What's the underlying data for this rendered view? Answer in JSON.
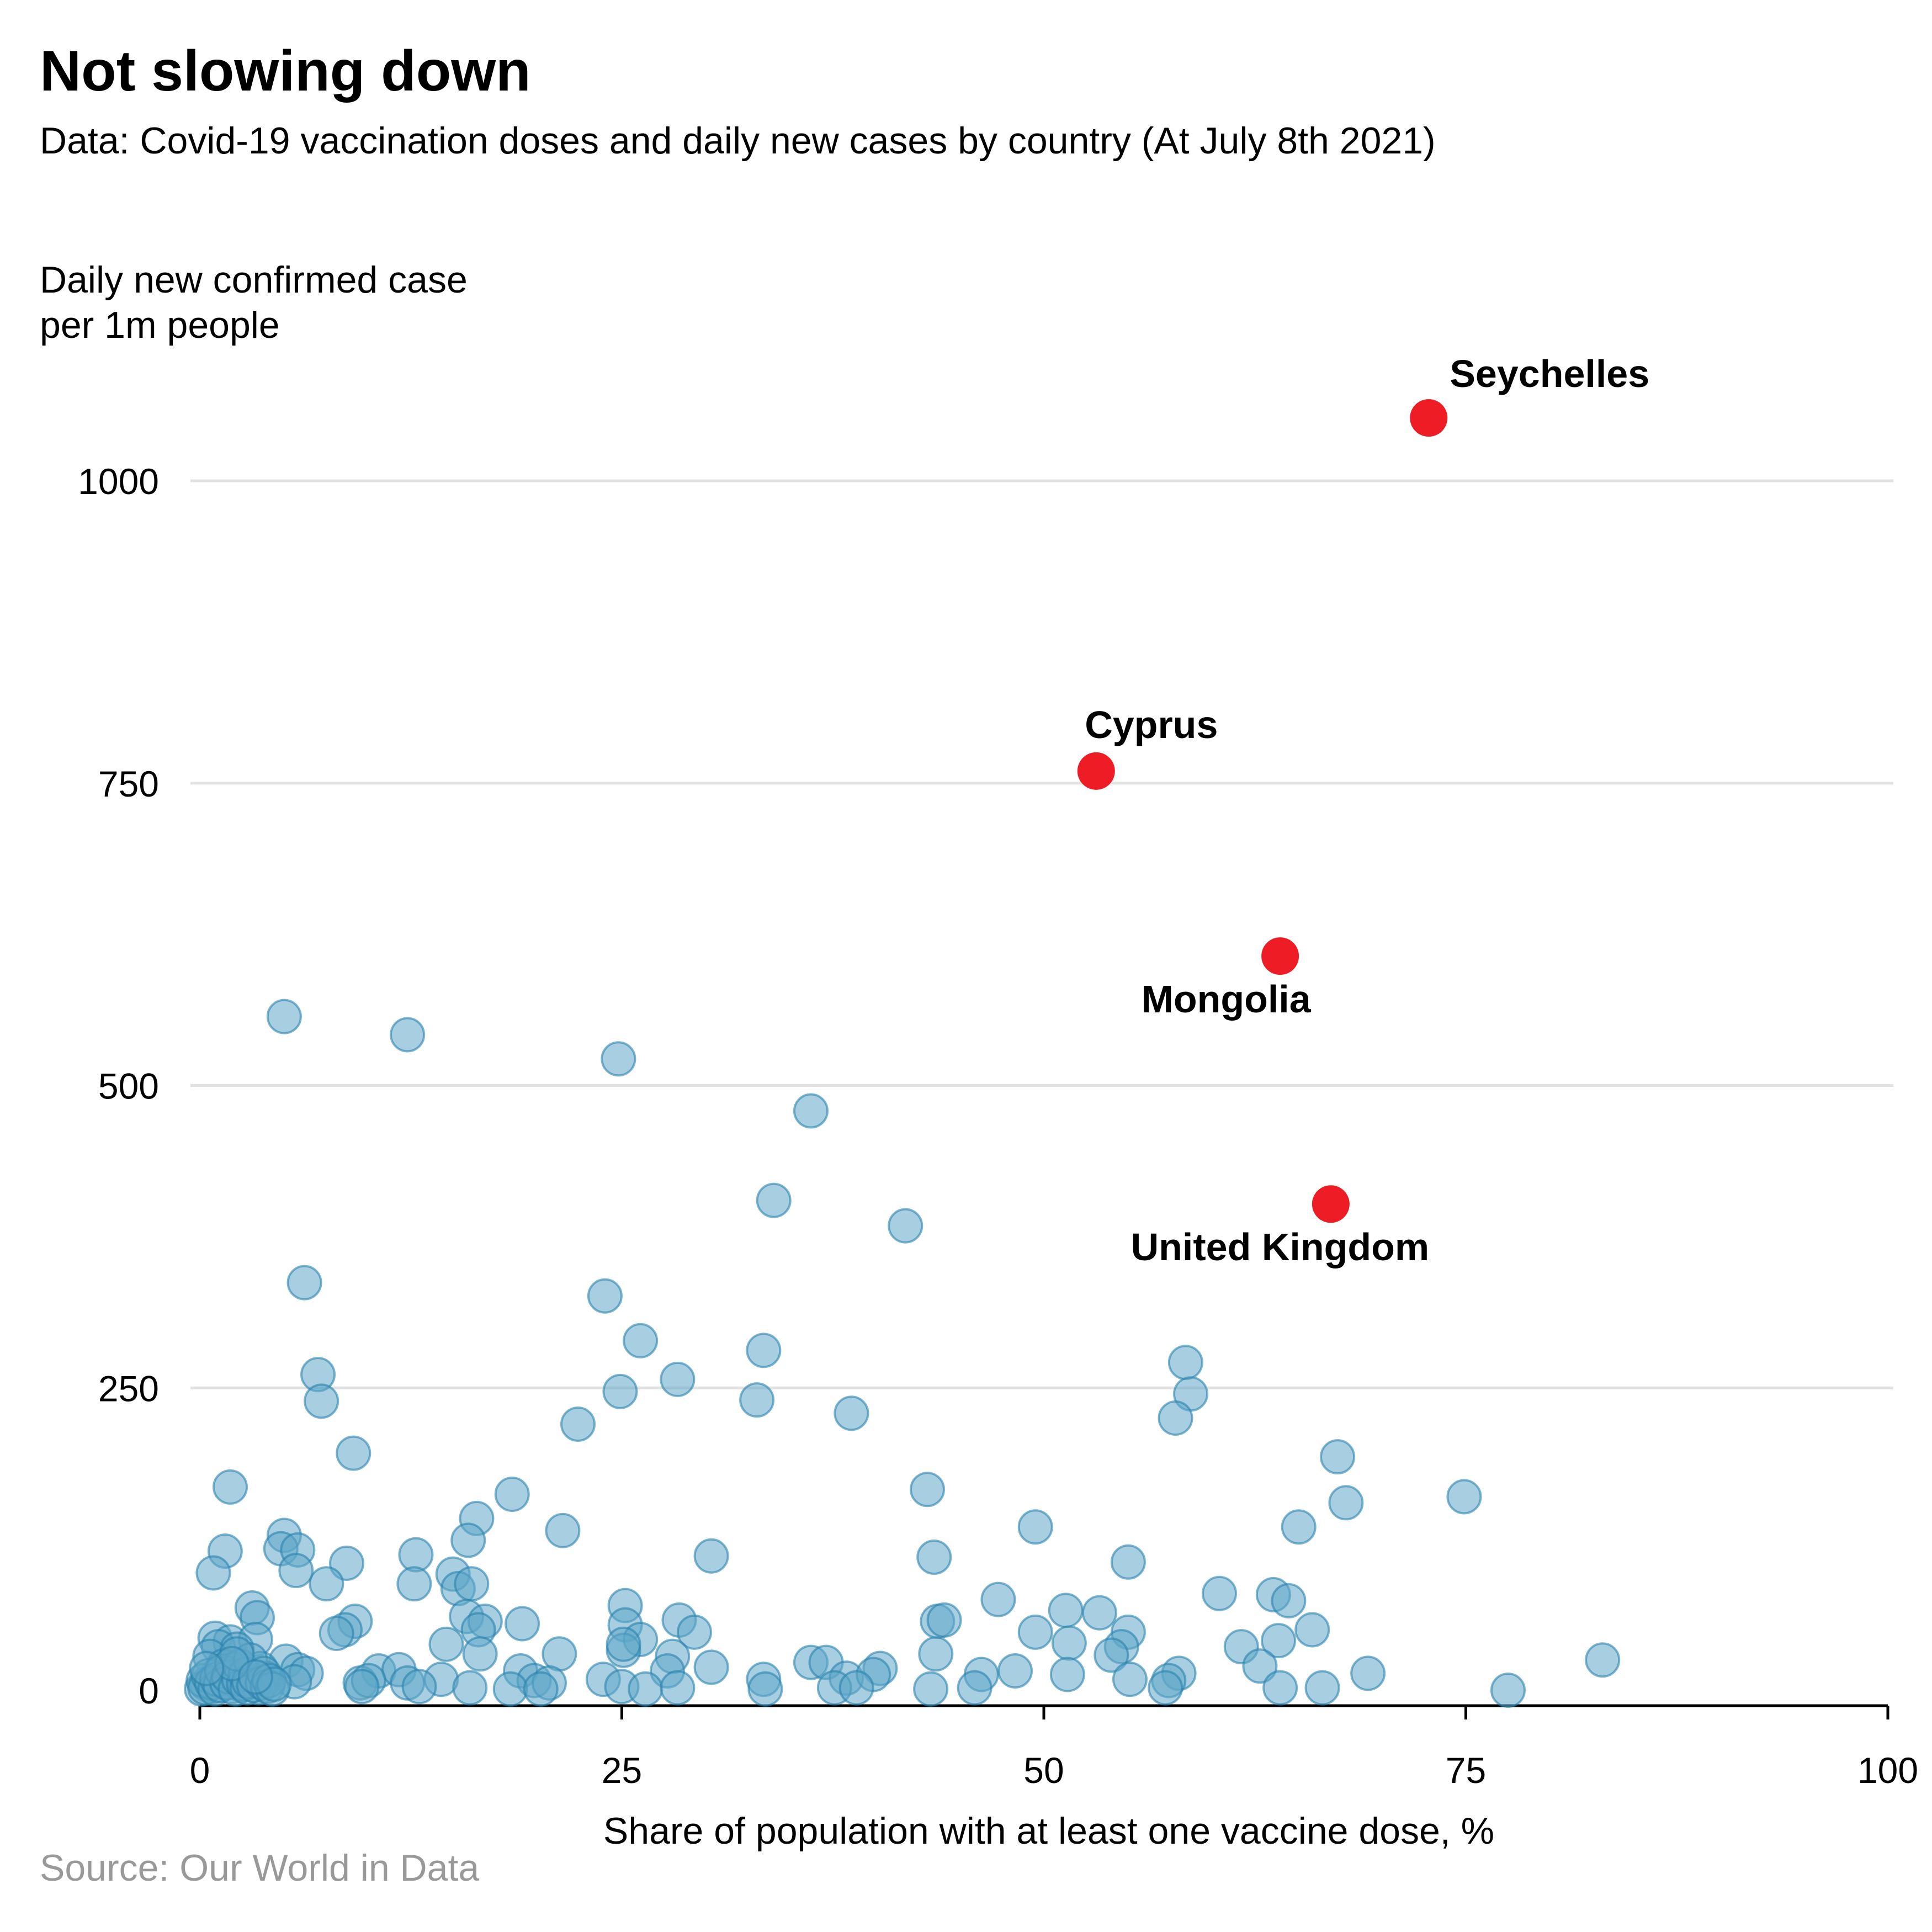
{
  "title": "Not slowing down",
  "subtitle": "Data: Covid-19 vaccination doses and daily new cases by country (At July 8th 2021)",
  "ylabel_line1": "Daily new confirmed case",
  "ylabel_line2": "per 1m people",
  "source": "Source: Our World in Data",
  "chart_data": {
    "type": "scatter",
    "title": "Not slowing down",
    "subtitle": "Data: Covid-19 vaccination doses and daily new cases by country (At July 8th 2021)",
    "xlabel": "Share of population with at least one vaccine dose, %",
    "ylabel": "Daily new confirmed case per 1m people",
    "xlim": [
      0,
      100
    ],
    "ylim": [
      0,
      1060
    ],
    "xticks": [
      0,
      25,
      50,
      75,
      100
    ],
    "yticks": [
      0,
      250,
      500,
      750,
      1000
    ],
    "grid": "horizontal",
    "colors": {
      "base": "#5ea7c8",
      "base_stroke": "#2a82ad",
      "highlight": "#ee1c25"
    },
    "highlighted": [
      {
        "name": "Seychelles",
        "x": 72.8,
        "y": 1052,
        "label_position": "above-right"
      },
      {
        "name": "Cyprus",
        "x": 53.1,
        "y": 760,
        "label_position": "above"
      },
      {
        "name": "Mongolia",
        "x": 64.0,
        "y": 607,
        "label_position": "below-left"
      },
      {
        "name": "United Kingdom",
        "x": 67.0,
        "y": 402,
        "label_position": "below"
      }
    ],
    "points": [
      [
        5.0,
        557
      ],
      [
        12.3,
        542
      ],
      [
        24.8,
        522
      ],
      [
        36.2,
        479
      ],
      [
        34.0,
        405
      ],
      [
        41.8,
        384
      ],
      [
        6.2,
        337
      ],
      [
        24.0,
        326
      ],
      [
        26.1,
        289
      ],
      [
        33.4,
        281
      ],
      [
        7.0,
        261
      ],
      [
        28.3,
        257
      ],
      [
        58.4,
        271
      ],
      [
        58.7,
        245
      ],
      [
        7.2,
        239
      ],
      [
        24.9,
        247
      ],
      [
        33.0,
        240
      ],
      [
        38.6,
        229
      ],
      [
        57.8,
        225
      ],
      [
        22.4,
        220
      ],
      [
        9.1,
        196
      ],
      [
        67.4,
        193
      ],
      [
        1.8,
        168
      ],
      [
        43.1,
        166
      ],
      [
        18.5,
        162
      ],
      [
        67.9,
        155
      ],
      [
        74.9,
        160
      ],
      [
        16.4,
        142
      ],
      [
        49.5,
        135
      ],
      [
        65.1,
        135
      ],
      [
        21.5,
        132
      ],
      [
        5.0,
        128
      ],
      [
        4.8,
        117
      ],
      [
        1.5,
        115
      ],
      [
        5.8,
        116
      ],
      [
        12.8,
        112
      ],
      [
        30.3,
        111
      ],
      [
        43.5,
        110
      ],
      [
        15.9,
        124
      ],
      [
        55.0,
        106
      ],
      [
        8.7,
        105
      ],
      [
        0.8,
        97
      ],
      [
        5.7,
        99
      ],
      [
        15.0,
        96
      ],
      [
        12.7,
        88
      ],
      [
        7.5,
        88
      ],
      [
        15.3,
        84
      ],
      [
        16.1,
        88
      ],
      [
        60.4,
        80
      ],
      [
        63.6,
        79
      ],
      [
        47.3,
        75
      ],
      [
        64.5,
        74
      ],
      [
        3.1,
        68
      ],
      [
        3.4,
        60
      ],
      [
        15.8,
        61
      ],
      [
        25.2,
        70
      ],
      [
        28.4,
        58
      ],
      [
        43.7,
        57
      ],
      [
        44.1,
        58
      ],
      [
        51.3,
        66
      ],
      [
        53.3,
        64
      ],
      [
        9.2,
        57
      ],
      [
        16.9,
        57
      ],
      [
        19.1,
        55
      ],
      [
        25.2,
        54
      ],
      [
        65.9,
        50
      ],
      [
        8.6,
        50
      ],
      [
        16.5,
        50
      ],
      [
        29.3,
        48
      ],
      [
        49.5,
        48
      ],
      [
        55.0,
        48
      ],
      [
        8.1,
        47
      ],
      [
        0.9,
        43
      ],
      [
        1.8,
        40
      ],
      [
        3.3,
        42
      ],
      [
        14.6,
        38
      ],
      [
        26.1,
        42
      ],
      [
        51.5,
        39
      ],
      [
        54.6,
        36
      ],
      [
        61.7,
        36
      ],
      [
        63.9,
        41
      ],
      [
        1.1,
        36
      ],
      [
        2.2,
        34
      ],
      [
        16.6,
        30
      ],
      [
        21.3,
        30
      ],
      [
        25.1,
        33
      ],
      [
        25.1,
        38
      ],
      [
        28.0,
        28
      ],
      [
        43.6,
        30
      ],
      [
        54.0,
        29
      ],
      [
        83.1,
        25
      ],
      [
        0.6,
        28
      ],
      [
        1.4,
        20
      ],
      [
        5.1,
        24
      ],
      [
        36.2,
        23
      ],
      [
        37.1,
        23
      ],
      [
        62.8,
        20
      ],
      [
        1.1,
        14
      ],
      [
        2.0,
        17
      ],
      [
        3.6,
        18
      ],
      [
        5.8,
        17
      ],
      [
        6.3,
        14
      ],
      [
        10.6,
        16
      ],
      [
        11.8,
        17
      ],
      [
        19.0,
        16
      ],
      [
        27.7,
        16
      ],
      [
        30.3,
        19
      ],
      [
        40.3,
        18
      ],
      [
        46.3,
        13
      ],
      [
        48.3,
        16
      ],
      [
        51.4,
        13
      ],
      [
        58.0,
        14
      ],
      [
        69.2,
        14
      ],
      [
        1.5,
        10
      ],
      [
        3.9,
        10
      ],
      [
        5.6,
        7
      ],
      [
        9.5,
        6
      ],
      [
        10.0,
        8
      ],
      [
        12.3,
        6
      ],
      [
        14.3,
        9
      ],
      [
        19.8,
        8
      ],
      [
        20.7,
        6
      ],
      [
        23.9,
        9
      ],
      [
        33.4,
        9
      ],
      [
        38.3,
        10
      ],
      [
        39.9,
        13
      ],
      [
        55.1,
        9
      ],
      [
        57.4,
        8
      ],
      [
        0.4,
        5
      ],
      [
        0.8,
        3
      ],
      [
        1.9,
        3
      ],
      [
        2.5,
        4
      ],
      [
        3.5,
        2
      ],
      [
        9.6,
        3
      ],
      [
        13.0,
        3
      ],
      [
        16.0,
        2
      ],
      [
        18.4,
        1
      ],
      [
        20.2,
        1
      ],
      [
        25.0,
        3
      ],
      [
        26.4,
        1
      ],
      [
        28.3,
        2
      ],
      [
        33.5,
        1
      ],
      [
        37.6,
        2
      ],
      [
        38.9,
        2
      ],
      [
        43.3,
        1
      ],
      [
        45.9,
        2
      ],
      [
        57.2,
        2
      ],
      [
        64.0,
        2
      ],
      [
        66.5,
        2
      ],
      [
        77.5,
        0
      ],
      [
        0.1,
        1
      ],
      [
        0.2,
        8
      ],
      [
        0.3,
        2
      ],
      [
        0.5,
        12
      ],
      [
        0.7,
        6
      ],
      [
        0.9,
        1
      ],
      [
        1.0,
        9
      ],
      [
        1.2,
        4
      ],
      [
        1.3,
        16
      ],
      [
        1.6,
        6
      ],
      [
        1.7,
        11
      ],
      [
        2.1,
        1
      ],
      [
        2.3,
        9
      ],
      [
        2.4,
        20
      ],
      [
        2.6,
        5
      ],
      [
        2.7,
        13
      ],
      [
        2.8,
        2
      ],
      [
        2.9,
        7
      ],
      [
        3.0,
        25
      ],
      [
        3.2,
        4
      ],
      [
        3.7,
        6
      ],
      [
        3.8,
        14
      ],
      [
        4.0,
        3
      ],
      [
        4.1,
        8
      ],
      [
        4.3,
        1
      ],
      [
        4.4,
        5
      ],
      [
        2.2,
        30
      ],
      [
        1.9,
        22
      ],
      [
        0.4,
        18
      ],
      [
        3.3,
        11
      ]
    ]
  }
}
